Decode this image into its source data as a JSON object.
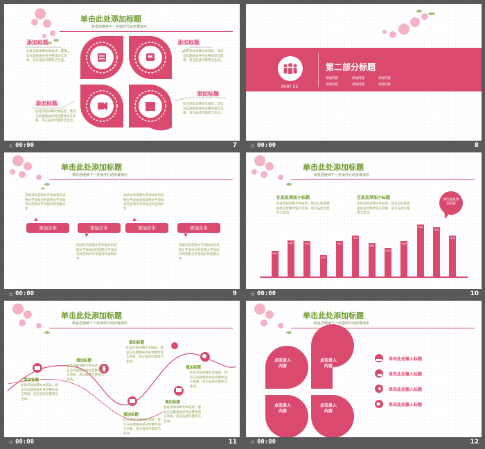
{
  "common": {
    "title": "单击此处添加标题",
    "subtitle": "恭喜您继续下一步操作行动步骤演示",
    "duration": "00:00",
    "add_title": "添加标题",
    "body": "此处添加详细文本描述，建议与标题相关并符合整体语言风格，语言描述尽量简洁生动。"
  },
  "slides": [
    {
      "number": "7"
    },
    {
      "number": "8",
      "section_title": "第二部分标题",
      "part": "PART 02",
      "items": [
        "添加内容",
        "添加内容",
        "添加内容",
        "添加内容",
        "添加内容",
        "添加内容"
      ]
    },
    {
      "number": "9",
      "pills": [
        "添加文本",
        "添加文本",
        "添加文本",
        "添加文本"
      ],
      "body": "添加对的说明文字添加对的说明文字添加对的说明文字添加对的说明文字添加对的说明文字"
    },
    {
      "number": "10",
      "sub_title_1": "在此处添加小标题",
      "sub_title_2": "在此处添加小标题",
      "bubble": "请在此处添加内容"
    },
    {
      "number": "11",
      "node_label": "填加标题"
    },
    {
      "number": "12",
      "petal_text": "点击录入内容",
      "item_text": "单击此处输入标题"
    }
  ],
  "chart_data": {
    "type": "bar",
    "values": [
      0.45,
      0.63,
      0.62,
      0.38,
      0.62,
      0.72,
      0.58,
      0.5,
      0.62,
      0.92,
      0.86,
      0.72
    ],
    "value_label": "000"
  },
  "colors": {
    "accent": "#d94a6e",
    "title_green": "#6e9a2c",
    "background": "#595959"
  }
}
